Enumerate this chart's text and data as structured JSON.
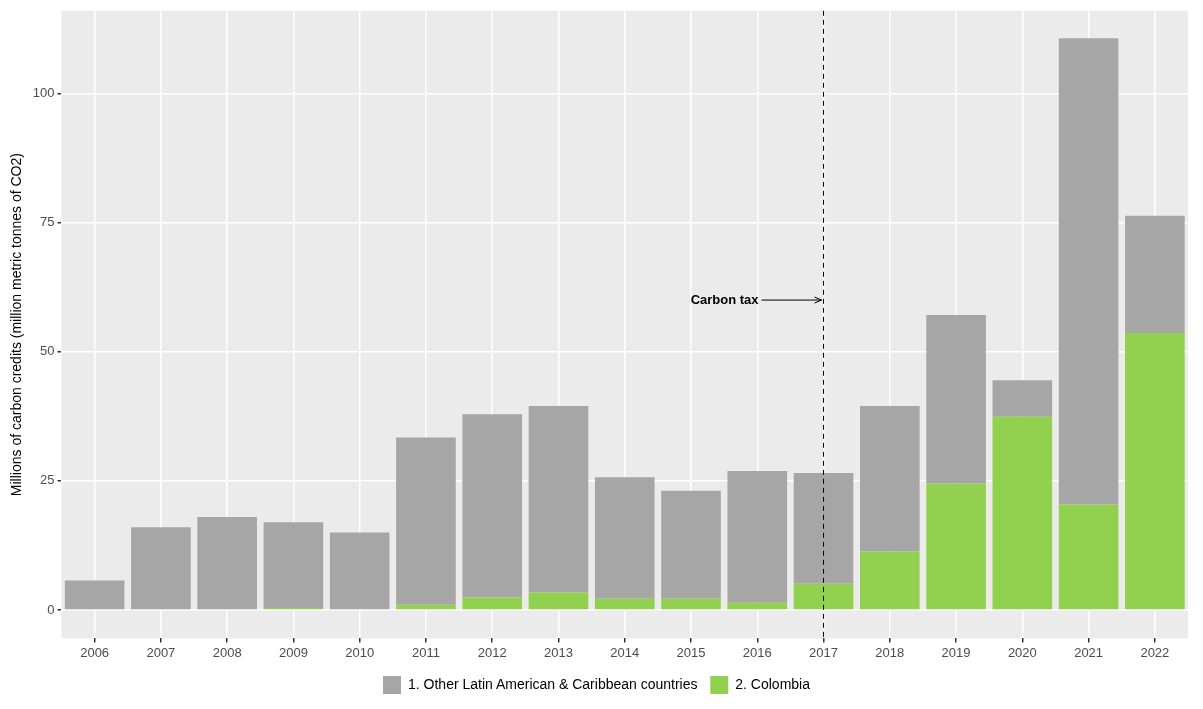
{
  "chart_data": {
    "type": "bar",
    "ylabel": "Millions of carbon credits (million metric tonnes of CO2)",
    "categories": [
      "2006",
      "2007",
      "2008",
      "2009",
      "2010",
      "2011",
      "2012",
      "2013",
      "2014",
      "2015",
      "2016",
      "2017",
      "2018",
      "2019",
      "2020",
      "2021",
      "2022"
    ],
    "stacked": true,
    "series": [
      {
        "name": "2. Colombia",
        "color": "#92d050",
        "values": [
          0,
          null,
          null,
          0.4,
          null,
          1.0,
          2.4,
          3.4,
          2.2,
          2.2,
          1.4,
          5.1,
          11.3,
          24.5,
          37.4,
          20.4,
          53.6
        ]
      },
      {
        "name": "1. Other Latin American & Caribbean countries",
        "color": "#a6a6a6",
        "values": [
          5.7,
          16.0,
          18.0,
          16.6,
          15.0,
          32.4,
          35.5,
          36.1,
          23.5,
          20.9,
          25.5,
          21.4,
          28.2,
          32.6,
          7.1,
          90.3,
          22.7
        ]
      }
    ],
    "ylim": [
      -5.5,
      116
    ],
    "yticks": [
      0,
      25,
      50,
      75,
      100
    ],
    "grid": true,
    "legend": "bottom",
    "ref_lines": [
      {
        "axis": "x",
        "value": "2017",
        "line_style": "dashed",
        "color": "#000000"
      }
    ],
    "annotations": [
      {
        "text": "Carbon tax",
        "x": "2017",
        "y": 60
      }
    ]
  }
}
